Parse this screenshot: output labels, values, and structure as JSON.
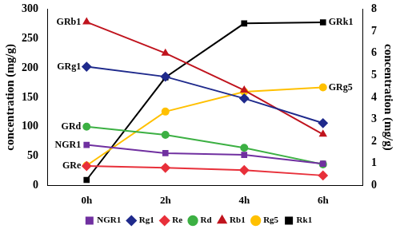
{
  "chart_data": {
    "type": "line",
    "y_label": "concentration (mg/g)",
    "y2_label": "concentration (mg/g)",
    "categories": [
      "0h",
      "2h",
      "4h",
      "6h"
    ],
    "ylim": [
      0,
      300
    ],
    "yticks": [
      0,
      50,
      100,
      150,
      200,
      250,
      300
    ],
    "y2lim": [
      0,
      8
    ],
    "y2ticks": [
      0,
      1,
      2,
      3,
      4,
      5,
      6,
      7,
      8
    ],
    "grid": false,
    "legend": "bottom",
    "series": [
      {
        "name": "NGR1",
        "color": "#7030a0",
        "marker": "square",
        "values": [
          69,
          55,
          52,
          37
        ]
      },
      {
        "name": "Rg1",
        "color": "#1f2a8c",
        "marker": "diamond",
        "values": [
          202,
          185,
          148,
          106
        ]
      },
      {
        "name": "Re",
        "color": "#e8303a",
        "marker": "diamond",
        "values": [
          33,
          30,
          26,
          17
        ]
      },
      {
        "name": "Rd",
        "color": "#3cb043",
        "marker": "circle",
        "values": [
          100,
          86,
          64,
          36
        ]
      },
      {
        "name": "Rb1",
        "color": "#c0141e",
        "marker": "triangle",
        "values": [
          278,
          225,
          162,
          87
        ]
      },
      {
        "name": "Rg5",
        "color": "#ffc000",
        "marker": "circle",
        "axis": "y2",
        "values": [
          0.9,
          3.35,
          4.25,
          4.45
        ]
      },
      {
        "name": "Rk1",
        "color": "#000000",
        "marker": "square",
        "axis": "y2",
        "values": [
          0.25,
          4.9,
          7.35,
          7.4
        ]
      }
    ],
    "annotations": [
      {
        "text": "GRb1",
        "series": "Rb1",
        "category": "0h"
      },
      {
        "text": "GRg1",
        "series": "Rg1",
        "category": "0h"
      },
      {
        "text": "GRd",
        "series": "Rd",
        "category": "0h"
      },
      {
        "text": "NGR1",
        "series": "NGR1",
        "category": "0h"
      },
      {
        "text": "GRe",
        "series": "Re",
        "category": "0h"
      },
      {
        "text": "GRk1",
        "series": "Rk1",
        "category": "6h"
      },
      {
        "text": "GRg5",
        "series": "Rg5",
        "category": "6h"
      }
    ]
  }
}
